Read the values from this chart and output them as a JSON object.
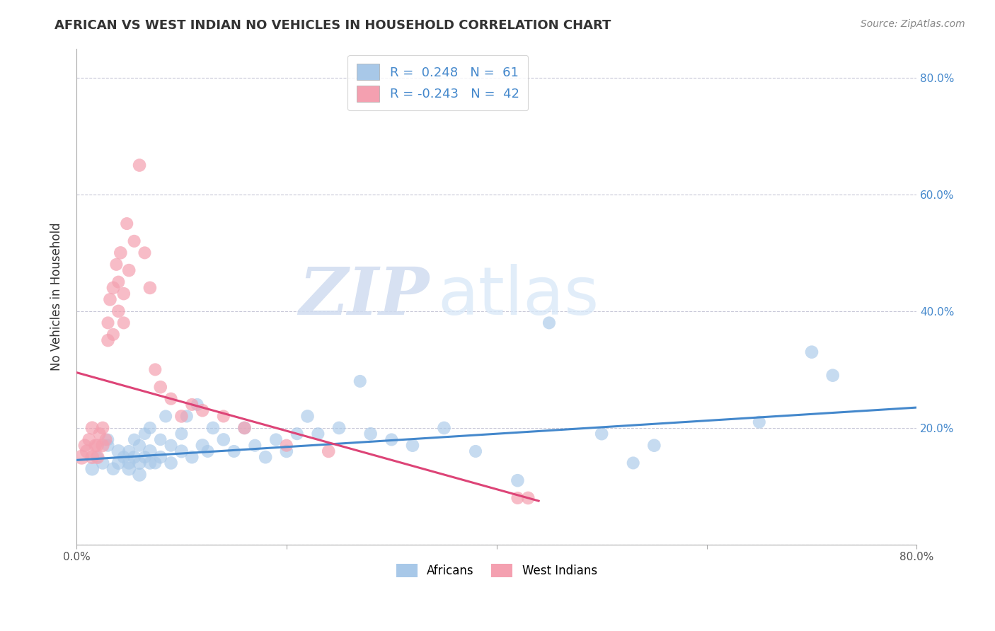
{
  "title": "AFRICAN VS WEST INDIAN NO VEHICLES IN HOUSEHOLD CORRELATION CHART",
  "source": "Source: ZipAtlas.com",
  "ylabel": "No Vehicles in Household",
  "watermark_zip": "ZIP",
  "watermark_atlas": "atlas",
  "xlim": [
    0.0,
    0.8
  ],
  "ylim": [
    0.0,
    0.85
  ],
  "x_ticks": [
    0.0,
    0.2,
    0.4,
    0.6,
    0.8
  ],
  "x_tick_labels": [
    "0.0%",
    "",
    "",
    "",
    "80.0%"
  ],
  "y_ticks": [
    0.0,
    0.2,
    0.4,
    0.6,
    0.8
  ],
  "y_tick_labels_right": [
    "",
    "20.0%",
    "40.0%",
    "60.0%",
    "80.0%"
  ],
  "legend_blue_label": "R =  0.248   N =  61",
  "legend_pink_label": "R = -0.243   N =  42",
  "legend_africans": "Africans",
  "legend_west_indians": "West Indians",
  "blue_color": "#A8C8E8",
  "pink_color": "#F4A0B0",
  "blue_line_color": "#4488CC",
  "pink_line_color": "#DD4477",
  "background_color": "#FFFFFF",
  "grid_color": "#C8C8D8",
  "africans_x": [
    0.015,
    0.02,
    0.025,
    0.03,
    0.03,
    0.035,
    0.04,
    0.04,
    0.045,
    0.05,
    0.05,
    0.05,
    0.055,
    0.055,
    0.06,
    0.06,
    0.06,
    0.065,
    0.065,
    0.07,
    0.07,
    0.07,
    0.075,
    0.08,
    0.08,
    0.085,
    0.09,
    0.09,
    0.1,
    0.1,
    0.105,
    0.11,
    0.115,
    0.12,
    0.125,
    0.13,
    0.14,
    0.15,
    0.16,
    0.17,
    0.18,
    0.19,
    0.2,
    0.21,
    0.22,
    0.23,
    0.25,
    0.27,
    0.28,
    0.3,
    0.32,
    0.35,
    0.38,
    0.42,
    0.45,
    0.5,
    0.53,
    0.55,
    0.65,
    0.7,
    0.72
  ],
  "africans_y": [
    0.13,
    0.15,
    0.14,
    0.17,
    0.18,
    0.13,
    0.14,
    0.16,
    0.15,
    0.13,
    0.14,
    0.16,
    0.15,
    0.18,
    0.12,
    0.14,
    0.17,
    0.15,
    0.19,
    0.14,
    0.16,
    0.2,
    0.14,
    0.15,
    0.18,
    0.22,
    0.14,
    0.17,
    0.16,
    0.19,
    0.22,
    0.15,
    0.24,
    0.17,
    0.16,
    0.2,
    0.18,
    0.16,
    0.2,
    0.17,
    0.15,
    0.18,
    0.16,
    0.19,
    0.22,
    0.19,
    0.2,
    0.28,
    0.19,
    0.18,
    0.17,
    0.2,
    0.16,
    0.11,
    0.38,
    0.19,
    0.14,
    0.17,
    0.21,
    0.33,
    0.29
  ],
  "africans_size": [
    200,
    150,
    180,
    170,
    160,
    180,
    190,
    200,
    170,
    200,
    180,
    170,
    180,
    160,
    200,
    190,
    170,
    170,
    160,
    180,
    200,
    170,
    170,
    180,
    160,
    170,
    180,
    170,
    190,
    170,
    170,
    180,
    170,
    190,
    170,
    180,
    180,
    170,
    180,
    170,
    180,
    170,
    180,
    170,
    180,
    170,
    180,
    170,
    180,
    170,
    180,
    180,
    170,
    180,
    170,
    180,
    170,
    180,
    170,
    180,
    180
  ],
  "west_indians_x": [
    0.005,
    0.008,
    0.01,
    0.012,
    0.015,
    0.015,
    0.018,
    0.02,
    0.02,
    0.022,
    0.025,
    0.025,
    0.028,
    0.03,
    0.03,
    0.032,
    0.035,
    0.035,
    0.038,
    0.04,
    0.04,
    0.042,
    0.045,
    0.045,
    0.048,
    0.05,
    0.055,
    0.06,
    0.065,
    0.07,
    0.075,
    0.08,
    0.09,
    0.1,
    0.11,
    0.12,
    0.14,
    0.16,
    0.2,
    0.24,
    0.42,
    0.43
  ],
  "west_indians_y": [
    0.15,
    0.17,
    0.16,
    0.18,
    0.15,
    0.2,
    0.17,
    0.15,
    0.17,
    0.19,
    0.17,
    0.2,
    0.18,
    0.35,
    0.38,
    0.42,
    0.36,
    0.44,
    0.48,
    0.4,
    0.45,
    0.5,
    0.38,
    0.43,
    0.55,
    0.47,
    0.52,
    0.65,
    0.5,
    0.44,
    0.3,
    0.27,
    0.25,
    0.22,
    0.24,
    0.23,
    0.22,
    0.2,
    0.17,
    0.16,
    0.08,
    0.08
  ],
  "west_indians_size": [
    230,
    180,
    200,
    180,
    200,
    190,
    180,
    200,
    180,
    170,
    190,
    180,
    170,
    180,
    170,
    180,
    170,
    180,
    170,
    180,
    170,
    180,
    170,
    180,
    170,
    180,
    170,
    180,
    170,
    180,
    170,
    180,
    170,
    180,
    170,
    180,
    170,
    180,
    170,
    180,
    170,
    180
  ],
  "blue_trend_x": [
    0.0,
    0.8
  ],
  "blue_trend_y": [
    0.145,
    0.235
  ],
  "pink_trend_x": [
    0.0,
    0.44
  ],
  "pink_trend_y": [
    0.295,
    0.075
  ]
}
